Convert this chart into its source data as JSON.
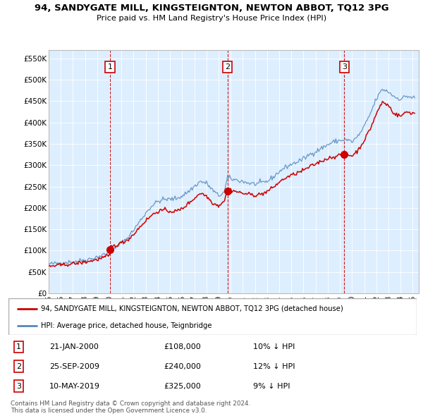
{
  "title": "94, SANDYGATE MILL, KINGSTEIGNTON, NEWTON ABBOT, TQ12 3PG",
  "subtitle": "Price paid vs. HM Land Registry's House Price Index (HPI)",
  "hpi_label": "HPI: Average price, detached house, Teignbridge",
  "property_label": "94, SANDYGATE MILL, KINGSTEIGNTON, NEWTON ABBOT, TQ12 3PG (detached house)",
  "red_color": "#cc0000",
  "blue_color": "#5588bb",
  "bg_color": "#ddeeff",
  "purchases": [
    {
      "num": 1,
      "date": "21-JAN-2000",
      "price": 108000,
      "pct": "10%",
      "dir": "↓",
      "x": 2000.05
    },
    {
      "num": 2,
      "date": "25-SEP-2009",
      "price": 240000,
      "pct": "12%",
      "dir": "↓",
      "x": 2009.73
    },
    {
      "num": 3,
      "date": "10-MAY-2019",
      "price": 325000,
      "pct": "9%",
      "dir": "↓",
      "x": 2019.36
    }
  ],
  "footer": "Contains HM Land Registry data © Crown copyright and database right 2024.\nThis data is licensed under the Open Government Licence v3.0.",
  "ylim": [
    0,
    570000
  ],
  "yticks": [
    0,
    50000,
    100000,
    150000,
    200000,
    250000,
    300000,
    350000,
    400000,
    450000,
    500000,
    550000
  ],
  "xlim_start": 1995,
  "xlim_end": 2025.5
}
